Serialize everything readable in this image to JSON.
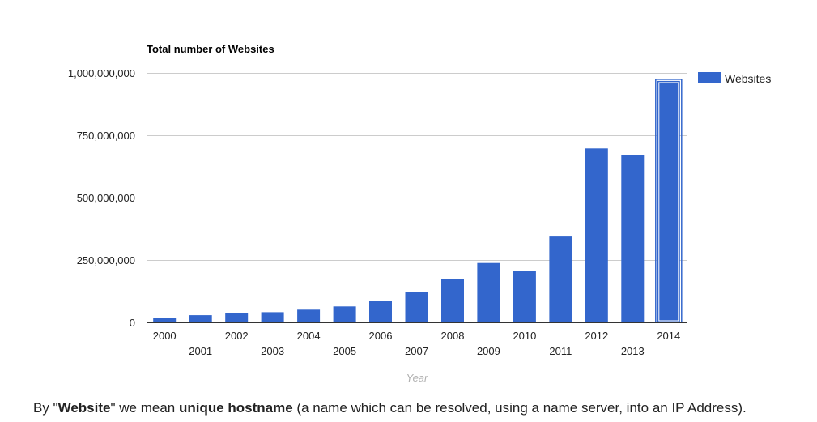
{
  "chart_data": {
    "type": "bar",
    "title": "Total number of Websites",
    "xlabel": "Year",
    "ylabel": "",
    "categories": [
      "2000",
      "2001",
      "2002",
      "2003",
      "2004",
      "2005",
      "2006",
      "2007",
      "2008",
      "2009",
      "2010",
      "2011",
      "2012",
      "2013",
      "2014"
    ],
    "series": [
      {
        "name": "Websites",
        "color": "#3366cc",
        "values": [
          17000000,
          29000000,
          38000000,
          41000000,
          51000000,
          64000000,
          85000000,
          122000000,
          172000000,
          238000000,
          207000000,
          347000000,
          697000000,
          672000000,
          968000000
        ]
      }
    ],
    "ylim": [
      0,
      1000000000
    ],
    "yticks": [
      0,
      250000000,
      500000000,
      750000000,
      1000000000
    ],
    "ytick_labels": [
      "0",
      "250,000,000",
      "500,000,000",
      "750,000,000",
      "1,000,000,000"
    ],
    "grid": true,
    "legend_position": "right",
    "highlighted_category": "2014"
  },
  "footnote": {
    "p1": "By \"",
    "b1": "Website",
    "p2": "\" we mean ",
    "b2": "unique hostname",
    "p3": " (a name which can be resolved, using a name server, into an IP Address)."
  }
}
